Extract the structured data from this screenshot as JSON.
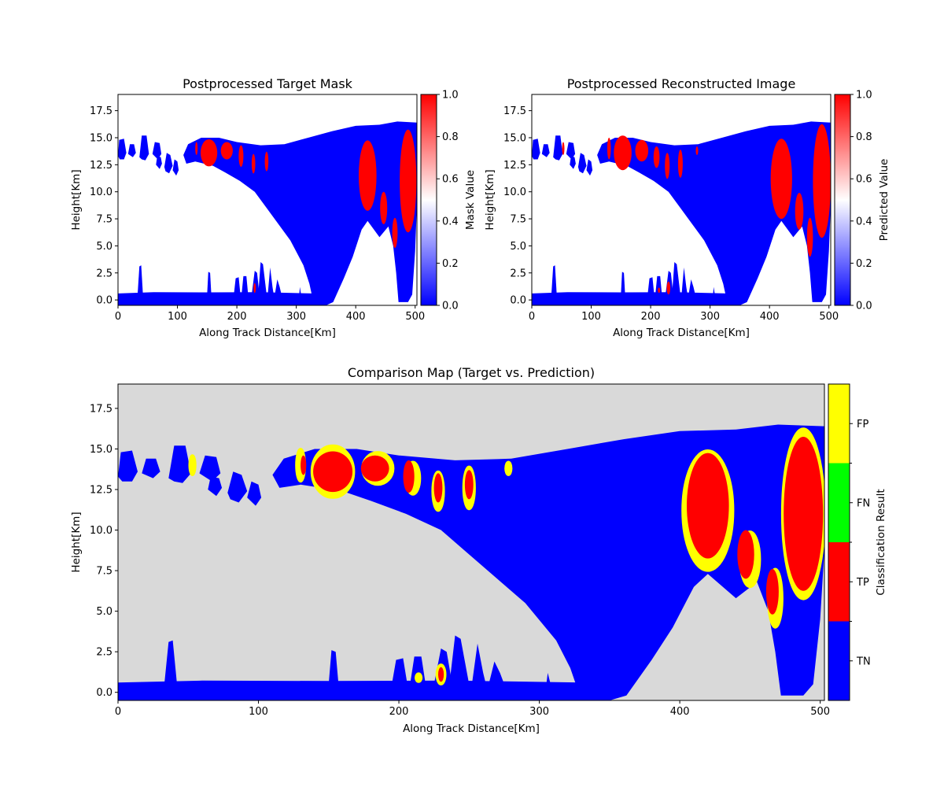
{
  "chart_data": [
    {
      "type": "heatmap",
      "title": "Postprocessed Target Mask",
      "xlabel": "Along Track Distance[Km]",
      "ylabel": "Height[Km]",
      "xlim": [
        0,
        503
      ],
      "ylim": [
        -0.5,
        19
      ],
      "xticks": [
        "0",
        "100",
        "200",
        "300",
        "400",
        "500"
      ],
      "yticks": [
        "0.0",
        "2.5",
        "5.0",
        "7.5",
        "10.0",
        "12.5",
        "15.0",
        "17.5"
      ],
      "colorbar": {
        "label": "Mask Value",
        "range": [
          0,
          1
        ],
        "ticks": [
          "0.0",
          "0.2",
          "0.4",
          "0.6",
          "0.8",
          "1.0"
        ],
        "colors": [
          "#0000ff",
          "#ffffff",
          "#ff0000"
        ]
      },
      "regions": {
        "cloud_value": 0.0,
        "positive_value": 1.0,
        "positive_blobs": [
          {
            "x": 132,
            "y": 14.0,
            "w": 4,
            "h": 1.2
          },
          {
            "x": 153,
            "y": 13.6,
            "w": 28,
            "h": 2.5
          },
          {
            "x": 183,
            "y": 13.8,
            "w": 20,
            "h": 1.6
          },
          {
            "x": 207,
            "y": 13.3,
            "w": 8,
            "h": 2.0
          },
          {
            "x": 228,
            "y": 12.6,
            "w": 6,
            "h": 1.8
          },
          {
            "x": 250,
            "y": 12.8,
            "w": 6,
            "h": 1.8
          },
          {
            "x": 420,
            "y": 11.5,
            "w": 30,
            "h": 6.5
          },
          {
            "x": 447,
            "y": 8.5,
            "w": 12,
            "h": 3.0
          },
          {
            "x": 466,
            "y": 6.2,
            "w": 9,
            "h": 2.8
          },
          {
            "x": 488,
            "y": 11.0,
            "w": 28,
            "h": 9.5
          },
          {
            "x": 230,
            "y": 1.1,
            "w": 4,
            "h": 0.9
          }
        ]
      }
    },
    {
      "type": "heatmap",
      "title": "Postprocessed Reconstructed Image",
      "xlabel": "Along Track Distance[Km]",
      "ylabel": "Height[Km]",
      "xlim": [
        0,
        503
      ],
      "ylim": [
        -0.5,
        19
      ],
      "xticks": [
        "0",
        "100",
        "200",
        "300",
        "400",
        "500"
      ],
      "yticks": [
        "0.0",
        "2.5",
        "5.0",
        "7.5",
        "10.0",
        "12.5",
        "15.0",
        "17.5"
      ],
      "colorbar": {
        "label": "Predicted Value",
        "range": [
          0,
          1
        ],
        "ticks": [
          "0.0",
          "0.2",
          "0.4",
          "0.6",
          "0.8",
          "1.0"
        ],
        "colors": [
          "#0000ff",
          "#ffffff",
          "#ff0000"
        ]
      },
      "regions": {
        "cloud_value": 0.0,
        "positive_value": 1.0,
        "positive_blobs": [
          {
            "x": 53,
            "y": 14.0,
            "w": 4,
            "h": 1.2
          },
          {
            "x": 130,
            "y": 14.0,
            "w": 6,
            "h": 2.0
          },
          {
            "x": 153,
            "y": 13.6,
            "w": 30,
            "h": 3.2
          },
          {
            "x": 185,
            "y": 13.8,
            "w": 22,
            "h": 2.0
          },
          {
            "x": 210,
            "y": 13.2,
            "w": 10,
            "h": 2.0
          },
          {
            "x": 228,
            "y": 12.4,
            "w": 8,
            "h": 2.4
          },
          {
            "x": 250,
            "y": 12.6,
            "w": 8,
            "h": 2.6
          },
          {
            "x": 278,
            "y": 13.8,
            "w": 4,
            "h": 0.8
          },
          {
            "x": 420,
            "y": 11.2,
            "w": 36,
            "h": 7.4
          },
          {
            "x": 450,
            "y": 8.2,
            "w": 14,
            "h": 3.4
          },
          {
            "x": 468,
            "y": 5.8,
            "w": 10,
            "h": 3.6
          },
          {
            "x": 488,
            "y": 11.0,
            "w": 30,
            "h": 10.5
          },
          {
            "x": 230,
            "y": 1.1,
            "w": 6,
            "h": 1.2
          },
          {
            "x": 214,
            "y": 0.9,
            "w": 4,
            "h": 0.5
          }
        ]
      }
    },
    {
      "type": "heatmap",
      "title": "Comparison Map (Target vs. Prediction)",
      "xlabel": "Along Track Distance[Km]",
      "ylabel": "Height[Km]",
      "xlim": [
        0,
        503
      ],
      "ylim": [
        -0.5,
        19
      ],
      "xticks": [
        "0",
        "100",
        "200",
        "300",
        "400",
        "500"
      ],
      "yticks": [
        "0.0",
        "2.5",
        "5.0",
        "7.5",
        "10.0",
        "12.5",
        "15.0",
        "17.5"
      ],
      "background_color": "#d9d9d9",
      "categories": [
        {
          "label": "TN",
          "color": "#0000ff"
        },
        {
          "label": "TP",
          "color": "#ff0000"
        },
        {
          "label": "FN",
          "color": "#00ff00"
        },
        {
          "label": "FP",
          "color": "#ffff00"
        }
      ],
      "colorbar": {
        "label": "Classification Result",
        "ticks": [
          "TN",
          "TP",
          "FN",
          "FP"
        ]
      }
    }
  ]
}
